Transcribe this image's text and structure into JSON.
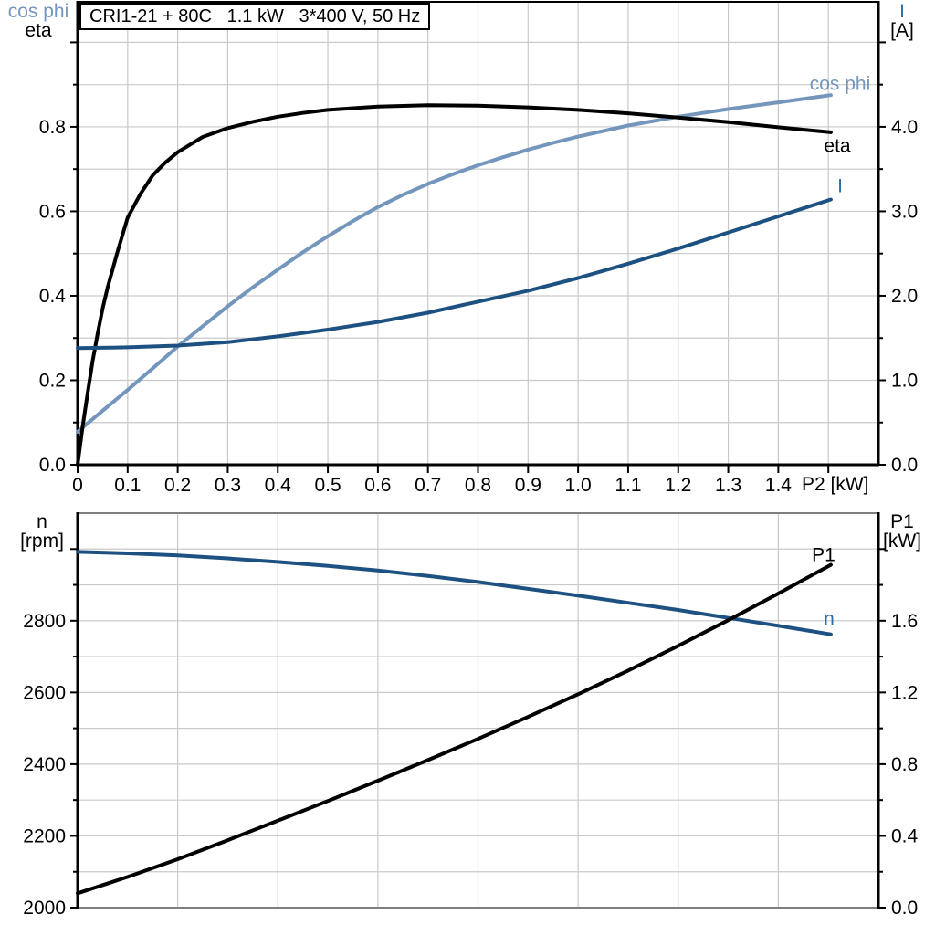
{
  "style": {
    "grid_color": "#c9c9c9",
    "frame_gray": "#7f7f7f",
    "axis_black": "#000000",
    "background": "#ffffff"
  },
  "chart_data": [
    {
      "type": "line",
      "title": "CRI1-21 + 80C   1.1 kW   3*400 V, 50 Hz",
      "x_axis": {
        "label": "P2 [kW]",
        "min": 0,
        "max": 1.6,
        "grid_step": 0.1,
        "ticks": [
          0,
          0.1,
          0.2,
          0.3,
          0.4,
          0.5,
          0.6,
          0.7,
          0.8,
          0.9,
          1.0,
          1.1,
          1.2,
          1.3,
          1.4,
          1.5
        ],
        "tick_labels": [
          "0",
          "0.1",
          "0.2",
          "0.3",
          "0.4",
          "0.5",
          "0.6",
          "0.7",
          "0.8",
          "0.9",
          "1.0",
          "1.1",
          "1.2",
          "1.3",
          "1.4",
          ""
        ]
      },
      "y_left": {
        "header_line1": "cos phi",
        "header_line2": "eta",
        "min": 0,
        "max": 1.096,
        "major_ticks": [
          0,
          0.2,
          0.4,
          0.6,
          0.8,
          1.0
        ],
        "major_labels": [
          "0.0",
          "0.2",
          "0.4",
          "0.6",
          "0.8",
          ""
        ],
        "minor_ticks": [
          0.1,
          0.3,
          0.5,
          0.7,
          0.9
        ]
      },
      "y_right": {
        "header_line1": "I",
        "header_line2": "[A]",
        "min": 0,
        "max": 5.48,
        "major_ticks": [
          0,
          1.0,
          2.0,
          3.0,
          4.0,
          5.0
        ],
        "major_labels": [
          "0.0",
          "1.0",
          "2.0",
          "3.0",
          "4.0",
          ""
        ],
        "minor_ticks": [
          0.5,
          1.5,
          2.5,
          3.5,
          4.5
        ]
      },
      "h_grid": {
        "axis": "left",
        "step": 0.1
      },
      "series": [
        {
          "name": "cos phi",
          "axis": "left",
          "color": "#7496bd",
          "label_color": "#7496bd",
          "points": [
            [
              0,
              0.078
            ],
            [
              0.05,
              0.128
            ],
            [
              0.1,
              0.177
            ],
            [
              0.15,
              0.228
            ],
            [
              0.2,
              0.28
            ],
            [
              0.25,
              0.328
            ],
            [
              0.3,
              0.375
            ],
            [
              0.35,
              0.42
            ],
            [
              0.4,
              0.462
            ],
            [
              0.45,
              0.503
            ],
            [
              0.5,
              0.541
            ],
            [
              0.55,
              0.577
            ],
            [
              0.6,
              0.61
            ],
            [
              0.65,
              0.639
            ],
            [
              0.7,
              0.665
            ],
            [
              0.75,
              0.688
            ],
            [
              0.8,
              0.709
            ],
            [
              0.85,
              0.728
            ],
            [
              0.9,
              0.746
            ],
            [
              0.95,
              0.762
            ],
            [
              1.0,
              0.777
            ],
            [
              1.1,
              0.803
            ],
            [
              1.2,
              0.824
            ],
            [
              1.3,
              0.842
            ],
            [
              1.4,
              0.858
            ],
            [
              1.505,
              0.875
            ]
          ]
        },
        {
          "name": "eta",
          "axis": "left",
          "color": "#000000",
          "label_color": "#000000",
          "points": [
            [
              0,
              0
            ],
            [
              0.01,
              0.09
            ],
            [
              0.02,
              0.17
            ],
            [
              0.03,
              0.245
            ],
            [
              0.04,
              0.31
            ],
            [
              0.05,
              0.37
            ],
            [
              0.06,
              0.42
            ],
            [
              0.08,
              0.505
            ],
            [
              0.1,
              0.585
            ],
            [
              0.125,
              0.64
            ],
            [
              0.15,
              0.685
            ],
            [
              0.175,
              0.715
            ],
            [
              0.2,
              0.74
            ],
            [
              0.25,
              0.776
            ],
            [
              0.3,
              0.797
            ],
            [
              0.35,
              0.812
            ],
            [
              0.4,
              0.824
            ],
            [
              0.45,
              0.833
            ],
            [
              0.5,
              0.84
            ],
            [
              0.6,
              0.848
            ],
            [
              0.7,
              0.851
            ],
            [
              0.8,
              0.85
            ],
            [
              0.9,
              0.846
            ],
            [
              1.0,
              0.84
            ],
            [
              1.1,
              0.832
            ],
            [
              1.2,
              0.822
            ],
            [
              1.3,
              0.811
            ],
            [
              1.4,
              0.799
            ],
            [
              1.505,
              0.787
            ]
          ]
        },
        {
          "name": "I",
          "axis": "right",
          "color": "#1d5181",
          "label_color": "#2e6da4",
          "points": [
            [
              0,
              1.38
            ],
            [
              0.1,
              1.39
            ],
            [
              0.2,
              1.41
            ],
            [
              0.3,
              1.45
            ],
            [
              0.4,
              1.52
            ],
            [
              0.5,
              1.6
            ],
            [
              0.6,
              1.69
            ],
            [
              0.7,
              1.8
            ],
            [
              0.8,
              1.93
            ],
            [
              0.9,
              2.06
            ],
            [
              1.0,
              2.21
            ],
            [
              1.1,
              2.38
            ],
            [
              1.2,
              2.56
            ],
            [
              1.3,
              2.75
            ],
            [
              1.4,
              2.94
            ],
            [
              1.505,
              3.14
            ]
          ]
        }
      ]
    },
    {
      "type": "line",
      "x_axis": {
        "label": "",
        "min": 0,
        "max": 1.6,
        "grid_step": 0.2,
        "ticks": [],
        "tick_labels": []
      },
      "y_left": {
        "header_line1": "n",
        "header_line2": "[rpm]",
        "min": 2000,
        "max": 3100,
        "major_ticks": [
          2000,
          2200,
          2400,
          2600,
          2800,
          3000
        ],
        "major_labels": [
          "2000",
          "2200",
          "2400",
          "2600",
          "2800",
          ""
        ],
        "minor_ticks": [
          2100,
          2300,
          2500,
          2700,
          2900
        ]
      },
      "y_right": {
        "header_line1": "P1",
        "header_line2": "[kW]",
        "min": 0,
        "max": 2.2,
        "major_ticks": [
          0,
          0.4,
          0.8,
          1.2,
          1.6,
          2.0
        ],
        "major_labels": [
          "0.0",
          "0.4",
          "0.8",
          "1.2",
          "1.6",
          ""
        ],
        "minor_ticks": [
          0.2,
          0.6,
          1.0,
          1.4,
          1.8
        ]
      },
      "h_grid": {
        "axis": "right",
        "step": 0.2
      },
      "series": [
        {
          "name": "n",
          "axis": "left",
          "color": "#1d5181",
          "label_color": "#2e6da4",
          "points": [
            [
              0,
              2992
            ],
            [
              0.1,
              2988
            ],
            [
              0.2,
              2982
            ],
            [
              0.3,
              2974
            ],
            [
              0.4,
              2964
            ],
            [
              0.5,
              2953
            ],
            [
              0.6,
              2940
            ],
            [
              0.7,
              2925
            ],
            [
              0.8,
              2908
            ],
            [
              0.9,
              2889
            ],
            [
              1.0,
              2870
            ],
            [
              1.1,
              2850
            ],
            [
              1.2,
              2830
            ],
            [
              1.3,
              2808
            ],
            [
              1.4,
              2786
            ],
            [
              1.505,
              2762
            ]
          ]
        },
        {
          "name": "P1",
          "axis": "right",
          "color": "#000000",
          "label_color": "#000000",
          "points": [
            [
              0,
              0.08
            ],
            [
              0.1,
              0.171
            ],
            [
              0.2,
              0.27
            ],
            [
              0.3,
              0.376
            ],
            [
              0.4,
              0.485
            ],
            [
              0.5,
              0.595
            ],
            [
              0.6,
              0.708
            ],
            [
              0.7,
              0.823
            ],
            [
              0.8,
              0.941
            ],
            [
              0.9,
              1.064
            ],
            [
              1.0,
              1.19
            ],
            [
              1.1,
              1.322
            ],
            [
              1.2,
              1.46
            ],
            [
              1.3,
              1.603
            ],
            [
              1.4,
              1.752
            ],
            [
              1.505,
              1.912
            ]
          ]
        }
      ]
    }
  ]
}
